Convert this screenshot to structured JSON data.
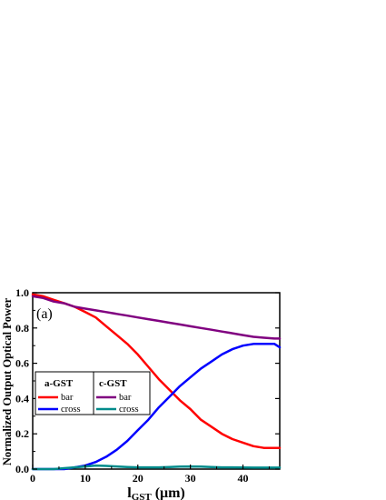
{
  "chart_data": {
    "type": "line",
    "panel_label": "(a)",
    "xlabel_main": "l",
    "xlabel_sub": "GST",
    "xlabel_unit": " (μm)",
    "ylabel": "Normalized Output Optical Power",
    "xlim": [
      0,
      47
    ],
    "ylim": [
      0,
      1.0
    ],
    "xticks": [
      0,
      10,
      20,
      30,
      40
    ],
    "yticks": [
      0.0,
      0.2,
      0.4,
      0.6,
      0.8,
      1.0
    ],
    "ytick_labels": [
      "0.0",
      "0.2",
      "0.4",
      "0.6",
      "0.8",
      "1.0"
    ],
    "grid": false,
    "legend": {
      "position": "middle-left",
      "groups": [
        {
          "title": "a-GST",
          "entries": [
            "a-bar",
            "a-cross"
          ]
        },
        {
          "title": "c-GST",
          "entries": [
            "c-bar",
            "c-cross"
          ]
        }
      ]
    },
    "series": [
      {
        "id": "a-bar",
        "group": "a-GST",
        "name": "bar",
        "color": "#ff0000",
        "x": [
          0,
          2,
          4,
          6,
          8,
          10,
          12,
          14,
          16,
          18,
          20,
          22,
          24,
          26,
          28,
          30,
          32,
          34,
          36,
          38,
          40,
          42,
          44,
          46,
          47
        ],
        "y": [
          0.99,
          0.98,
          0.96,
          0.94,
          0.92,
          0.89,
          0.86,
          0.81,
          0.76,
          0.71,
          0.65,
          0.58,
          0.51,
          0.45,
          0.39,
          0.34,
          0.28,
          0.24,
          0.2,
          0.17,
          0.15,
          0.13,
          0.12,
          0.12,
          0.12
        ]
      },
      {
        "id": "a-cross",
        "group": "a-GST",
        "name": "cross",
        "color": "#0000ff",
        "x": [
          0,
          2,
          4,
          6,
          8,
          10,
          12,
          14,
          16,
          18,
          20,
          22,
          24,
          26,
          28,
          30,
          32,
          34,
          36,
          38,
          40,
          42,
          44,
          46,
          47
        ],
        "y": [
          0.0,
          0.0,
          0.0,
          0.0,
          0.01,
          0.02,
          0.04,
          0.07,
          0.11,
          0.16,
          0.22,
          0.28,
          0.35,
          0.41,
          0.47,
          0.52,
          0.57,
          0.61,
          0.65,
          0.68,
          0.7,
          0.71,
          0.71,
          0.71,
          0.69
        ]
      },
      {
        "id": "c-bar",
        "group": "c-GST",
        "name": "bar",
        "color": "#800080",
        "x": [
          0,
          2,
          4,
          6,
          8,
          10,
          12,
          14,
          16,
          18,
          20,
          22,
          24,
          26,
          28,
          30,
          32,
          34,
          36,
          38,
          40,
          42,
          44,
          46,
          47
        ],
        "y": [
          0.98,
          0.97,
          0.95,
          0.94,
          0.92,
          0.91,
          0.9,
          0.89,
          0.88,
          0.87,
          0.86,
          0.85,
          0.84,
          0.83,
          0.82,
          0.81,
          0.8,
          0.79,
          0.78,
          0.77,
          0.76,
          0.75,
          0.745,
          0.74,
          0.74
        ]
      },
      {
        "id": "c-cross",
        "group": "c-GST",
        "name": "cross",
        "color": "#008b8b",
        "x": [
          0,
          2,
          4,
          6,
          8,
          10,
          12,
          14,
          16,
          18,
          20,
          22,
          24,
          26,
          28,
          30,
          32,
          34,
          36,
          38,
          40,
          42,
          44,
          46,
          47
        ],
        "y": [
          0.0,
          0.0,
          0.0,
          0.005,
          0.01,
          0.015,
          0.02,
          0.018,
          0.015,
          0.012,
          0.01,
          0.01,
          0.01,
          0.012,
          0.014,
          0.015,
          0.014,
          0.012,
          0.01,
          0.01,
          0.009,
          0.008,
          0.008,
          0.008,
          0.008
        ]
      }
    ]
  }
}
